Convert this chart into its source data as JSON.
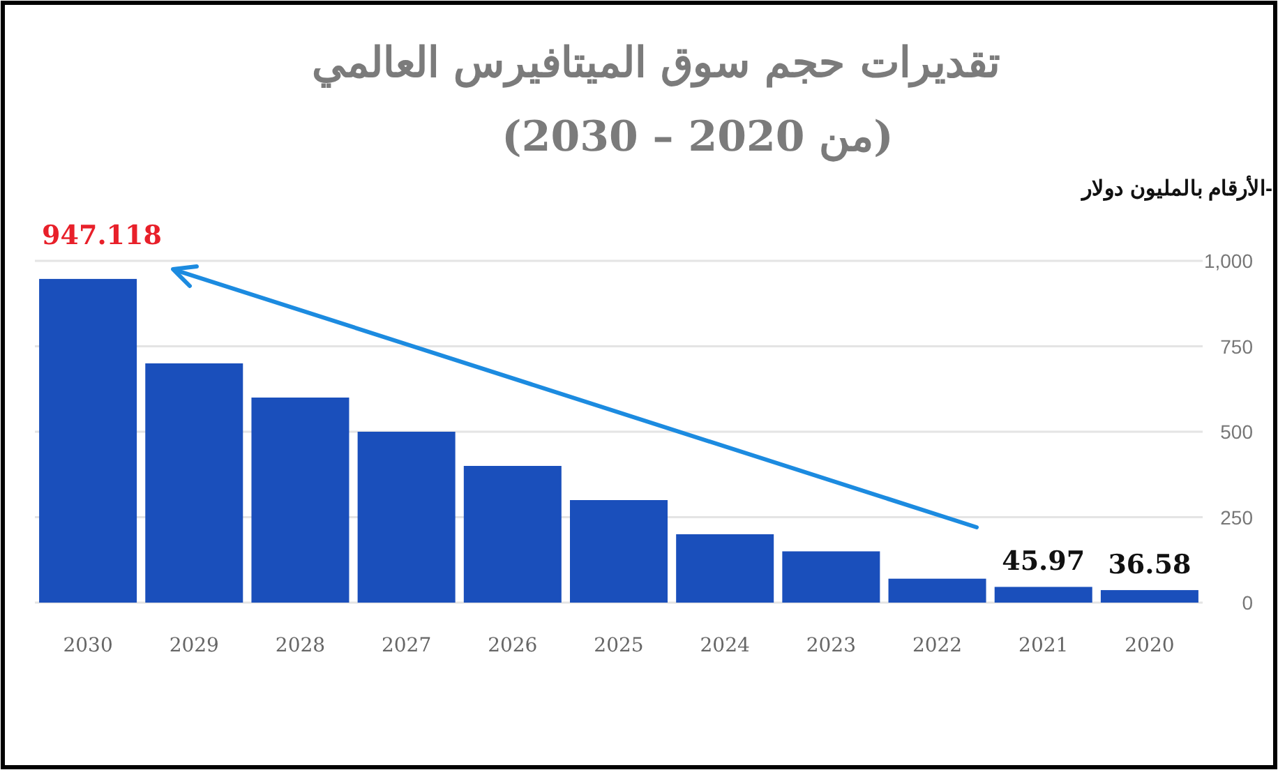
{
  "chart_data": {
    "type": "bar",
    "title": "تقديرات حجم سوق الميتافيرس العالمي",
    "subtitle": "(من 2020 – 2030)",
    "ylabel": "-الأرقام بالمليون دولار",
    "categories": [
      "2030",
      "2029",
      "2028",
      "2027",
      "2026",
      "2025",
      "2024",
      "2023",
      "2022",
      "2021",
      "2020"
    ],
    "values": [
      947.118,
      700,
      600,
      500,
      400,
      300,
      200,
      150,
      70,
      45.97,
      36.58
    ],
    "value_labels": [
      "947.118",
      null,
      null,
      null,
      null,
      null,
      null,
      null,
      null,
      "45.97",
      "36.58"
    ],
    "color": "#1a4fbb",
    "ylim": [
      0,
      1000
    ],
    "yticks": [
      0,
      250,
      500,
      750,
      {
        "value": 1000,
        "label": "1,000"
      }
    ],
    "grid": "y"
  }
}
